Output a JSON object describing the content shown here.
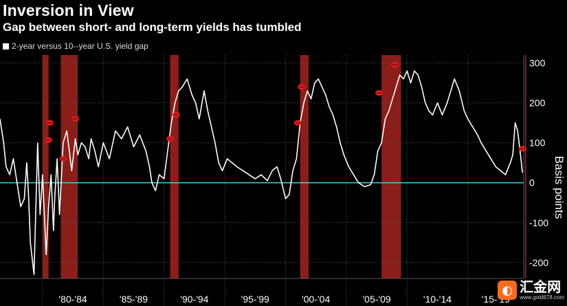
{
  "chart_data": {
    "type": "line",
    "title": "Inversion in View",
    "subtitle": "Gap between short- and long-term yields has tumbled",
    "ylabel": "Basis points",
    "ylim": [
      -240,
      320
    ],
    "xlim": [
      1976.5,
      2019.6
    ],
    "yticks": [
      300,
      200,
      100,
      0,
      -100,
      -200
    ],
    "x_categories": [
      "'80-'84",
      "'85-'89",
      "'90-'94",
      "'95-'99",
      "'00-'04",
      "'05-'09",
      "'10-'14",
      "'15-'19"
    ],
    "x_category_ranges": [
      [
        1980,
        1985
      ],
      [
        1985,
        1990
      ],
      [
        1990,
        1995
      ],
      [
        1995,
        2000
      ],
      [
        2000,
        2005
      ],
      [
        2005,
        2010
      ],
      [
        2010,
        2015
      ],
      [
        2015,
        2020
      ]
    ],
    "series": [
      {
        "name": "2-year versus 10--year U.S. yield gap",
        "color": "#ffffff",
        "x": [
          1976.5,
          1976.8,
          1977.0,
          1977.3,
          1977.6,
          1977.9,
          1978.2,
          1978.5,
          1978.7,
          1978.85,
          1979.0,
          1979.3,
          1979.5,
          1979.6,
          1979.8,
          1980.0,
          1980.3,
          1980.5,
          1980.7,
          1980.9,
          1981.0,
          1981.2,
          1981.4,
          1981.7,
          1982.0,
          1982.2,
          1982.4,
          1982.7,
          1982.9,
          1983.2,
          1983.5,
          1983.8,
          1984.0,
          1984.3,
          1984.6,
          1985.0,
          1985.5,
          1986.0,
          1986.5,
          1987.0,
          1987.5,
          1988.0,
          1988.5,
          1988.8,
          1989.0,
          1989.3,
          1989.6,
          1990.0,
          1990.3,
          1990.6,
          1990.9,
          1991.2,
          1991.5,
          1991.9,
          1992.3,
          1992.6,
          1992.9,
          1993.3,
          1993.6,
          1993.9,
          1994.2,
          1994.5,
          1994.8,
          1995.2,
          1995.6,
          1996.0,
          1996.5,
          1997.0,
          1997.5,
          1998.0,
          1998.5,
          1998.9,
          1999.3,
          1999.6,
          2000.0,
          2000.3,
          2000.6,
          2000.9,
          2001.2,
          2001.5,
          2001.8,
          2002.1,
          2002.4,
          2002.7,
          2003.0,
          2003.3,
          2003.6,
          2003.9,
          2004.2,
          2004.5,
          2004.8,
          2005.2,
          2005.6,
          2006.0,
          2006.5,
          2007.0,
          2007.3,
          2007.6,
          2007.9,
          2008.2,
          2008.5,
          2008.8,
          2009.1,
          2009.4,
          2009.7,
          2010.0,
          2010.3,
          2010.6,
          2010.9,
          2011.2,
          2011.5,
          2011.8,
          2012.1,
          2012.5,
          2012.9,
          2013.3,
          2013.6,
          2013.9,
          2014.3,
          2014.7,
          2015.0,
          2015.4,
          2015.8,
          2016.1,
          2016.5,
          2016.9,
          2017.3,
          2017.7,
          2018.1,
          2018.5,
          2018.7,
          2018.9,
          2019.1,
          2019.3,
          2019.5
        ],
        "y": [
          160,
          100,
          40,
          20,
          60,
          0,
          -60,
          -40,
          50,
          -30,
          -150,
          -230,
          -10,
          100,
          -80,
          20,
          -180,
          -60,
          20,
          -120,
          -40,
          60,
          -80,
          100,
          130,
          80,
          30,
          110,
          70,
          100,
          90,
          60,
          110,
          80,
          40,
          100,
          60,
          130,
          110,
          140,
          90,
          120,
          80,
          40,
          0,
          -20,
          20,
          10,
          80,
          150,
          200,
          230,
          240,
          260,
          220,
          200,
          160,
          230,
          180,
          140,
          100,
          50,
          30,
          60,
          50,
          40,
          30,
          20,
          10,
          20,
          5,
          30,
          40,
          10,
          -40,
          -30,
          30,
          60,
          150,
          200,
          230,
          210,
          250,
          260,
          240,
          220,
          190,
          170,
          140,
          100,
          70,
          40,
          20,
          0,
          -10,
          -5,
          20,
          80,
          100,
          160,
          180,
          210,
          240,
          270,
          260,
          280,
          250,
          280,
          270,
          240,
          200,
          180,
          170,
          200,
          170,
          200,
          230,
          260,
          230,
          180,
          160,
          140,
          120,
          100,
          80,
          60,
          40,
          30,
          20,
          50,
          70,
          150,
          130,
          80,
          25
        ]
      }
    ],
    "zero_line_color": "#3fd0d0",
    "recession_band_color": "#a2231d",
    "recession_bands": [
      [
        1980.0,
        1980.5
      ],
      [
        1981.5,
        1982.9
      ],
      [
        1990.5,
        1991.2
      ],
      [
        2001.2,
        2001.9
      ],
      [
        2007.9,
        2009.5
      ],
      [
        2019.7,
        2019.8
      ]
    ],
    "marker_color": "#e01d1d",
    "inversion_markers": [
      {
        "x": 1980.6,
        "y": 150
      },
      {
        "x": 1980.5,
        "y": 107
      },
      {
        "x": 1981.7,
        "y": 60
      },
      {
        "x": 1982.7,
        "y": 160
      },
      {
        "x": 1990.5,
        "y": 110
      },
      {
        "x": 1991.0,
        "y": 170
      },
      {
        "x": 2001.0,
        "y": 150
      },
      {
        "x": 2001.3,
        "y": 240
      },
      {
        "x": 2007.7,
        "y": 225
      },
      {
        "x": 2009.0,
        "y": 295
      },
      {
        "x": 2019.5,
        "y": 85
      }
    ],
    "grid": true,
    "legend_position": "top-left"
  },
  "watermark": {
    "logo_glyph": "◐",
    "name": "汇金网",
    "url": "www.gold678.com"
  },
  "colors": {
    "background": "#000000",
    "grid": "#555555",
    "line": "#ffffff",
    "zero_line": "#3fd0d0",
    "watermark_logo": "#f26d21"
  }
}
